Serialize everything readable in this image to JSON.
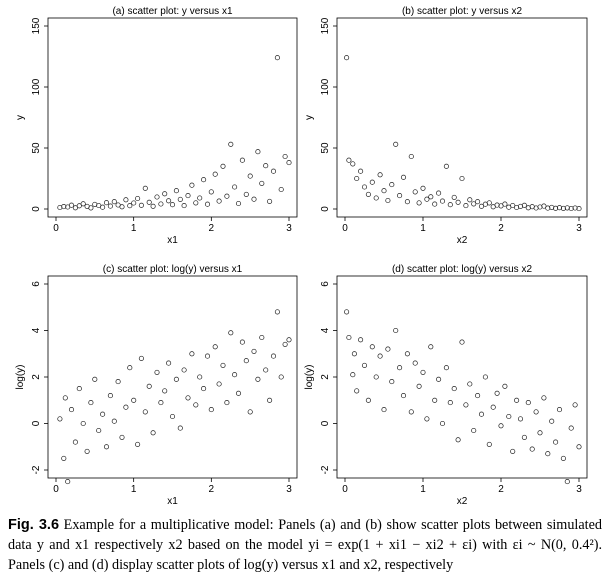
{
  "chart_data": [
    {
      "type": "scatter",
      "title": "(a) scatter plot: y versus x1",
      "xlabel": "x1",
      "ylabel": "y",
      "xlim": [
        0,
        3
      ],
      "ylim": [
        0,
        150
      ],
      "xticks": [
        0,
        1,
        2,
        3
      ],
      "yticks": [
        0,
        50,
        100,
        150
      ],
      "grid": false,
      "marker": "hollow circle",
      "points": [
        [
          0.05,
          1.2
        ],
        [
          0.1,
          2.0
        ],
        [
          0.15,
          1.6
        ],
        [
          0.2,
          3.1
        ],
        [
          0.25,
          1.0
        ],
        [
          0.3,
          2.6
        ],
        [
          0.35,
          4.3
        ],
        [
          0.4,
          2.1
        ],
        [
          0.45,
          0.9
        ],
        [
          0.5,
          3.8
        ],
        [
          0.55,
          2.9
        ],
        [
          0.6,
          1.5
        ],
        [
          0.65,
          5.2
        ],
        [
          0.7,
          2.4
        ],
        [
          0.75,
          6.0
        ],
        [
          0.8,
          3.3
        ],
        [
          0.85,
          1.8
        ],
        [
          0.9,
          7.5
        ],
        [
          0.95,
          2.7
        ],
        [
          1.0,
          4.9
        ],
        [
          1.05,
          8.6
        ],
        [
          1.1,
          3.0
        ],
        [
          1.15,
          17.0
        ],
        [
          1.2,
          5.5
        ],
        [
          1.25,
          2.2
        ],
        [
          1.3,
          9.8
        ],
        [
          1.35,
          4.1
        ],
        [
          1.4,
          12.5
        ],
        [
          1.45,
          6.7
        ],
        [
          1.5,
          3.5
        ],
        [
          1.55,
          15.0
        ],
        [
          1.6,
          7.9
        ],
        [
          1.65,
          2.8
        ],
        [
          1.7,
          11.0
        ],
        [
          1.75,
          19.5
        ],
        [
          1.8,
          5.0
        ],
        [
          1.85,
          9.0
        ],
        [
          1.9,
          24.0
        ],
        [
          1.95,
          3.9
        ],
        [
          2.0,
          14.0
        ],
        [
          2.05,
          28.5
        ],
        [
          2.1,
          6.5
        ],
        [
          2.15,
          35.0
        ],
        [
          2.2,
          10.5
        ],
        [
          2.25,
          53.0
        ],
        [
          2.3,
          18.0
        ],
        [
          2.35,
          4.5
        ],
        [
          2.4,
          40.0
        ],
        [
          2.45,
          12.0
        ],
        [
          2.5,
          27.0
        ],
        [
          2.55,
          8.0
        ],
        [
          2.6,
          47.0
        ],
        [
          2.65,
          21.0
        ],
        [
          2.7,
          35.5
        ],
        [
          2.75,
          6.2
        ],
        [
          2.8,
          31.0
        ],
        [
          2.85,
          124.0
        ],
        [
          2.9,
          16.0
        ],
        [
          2.95,
          43.0
        ],
        [
          3.0,
          38.0
        ]
      ]
    },
    {
      "type": "scatter",
      "title": "(b) scatter plot: y versus x2",
      "xlabel": "x2",
      "ylabel": "y",
      "xlim": [
        0,
        3
      ],
      "ylim": [
        0,
        150
      ],
      "xticks": [
        0,
        1,
        2,
        3
      ],
      "yticks": [
        0,
        50,
        100,
        150
      ],
      "grid": false,
      "marker": "hollow circle",
      "points": [
        [
          0.02,
          124.0
        ],
        [
          0.05,
          40.0
        ],
        [
          0.1,
          37.0
        ],
        [
          0.15,
          25.0
        ],
        [
          0.2,
          31.0
        ],
        [
          0.25,
          18.0
        ],
        [
          0.3,
          12.0
        ],
        [
          0.35,
          22.0
        ],
        [
          0.4,
          9.0
        ],
        [
          0.45,
          28.0
        ],
        [
          0.5,
          15.0
        ],
        [
          0.55,
          7.0
        ],
        [
          0.6,
          20.0
        ],
        [
          0.65,
          53.0
        ],
        [
          0.7,
          11.0
        ],
        [
          0.75,
          26.0
        ],
        [
          0.8,
          6.0
        ],
        [
          0.85,
          43.0
        ],
        [
          0.9,
          14.0
        ],
        [
          0.95,
          5.0
        ],
        [
          1.0,
          17.0
        ],
        [
          1.05,
          8.0
        ],
        [
          1.1,
          10.0
        ],
        [
          1.15,
          4.0
        ],
        [
          1.2,
          13.0
        ],
        [
          1.25,
          6.5
        ],
        [
          1.3,
          35.0
        ],
        [
          1.35,
          3.5
        ],
        [
          1.4,
          9.5
        ],
        [
          1.45,
          5.5
        ],
        [
          1.5,
          25.0
        ],
        [
          1.55,
          2.8
        ],
        [
          1.6,
          7.5
        ],
        [
          1.65,
          4.2
        ],
        [
          1.7,
          6.0
        ],
        [
          1.75,
          2.2
        ],
        [
          1.8,
          3.9
        ],
        [
          1.85,
          5.0
        ],
        [
          1.9,
          1.8
        ],
        [
          1.95,
          3.2
        ],
        [
          2.0,
          2.5
        ],
        [
          2.05,
          4.0
        ],
        [
          2.1,
          1.5
        ],
        [
          2.15,
          2.9
        ],
        [
          2.2,
          1.2
        ],
        [
          2.25,
          2.1
        ],
        [
          2.3,
          3.0
        ],
        [
          2.35,
          1.0
        ],
        [
          2.4,
          1.9
        ],
        [
          2.45,
          0.8
        ],
        [
          2.5,
          1.6
        ],
        [
          2.55,
          2.4
        ],
        [
          2.6,
          0.7
        ],
        [
          2.65,
          1.3
        ],
        [
          2.7,
          0.6
        ],
        [
          2.75,
          1.1
        ],
        [
          2.8,
          0.5
        ],
        [
          2.85,
          0.9
        ],
        [
          2.9,
          0.4
        ],
        [
          2.95,
          0.8
        ],
        [
          3.0,
          0.3
        ]
      ]
    },
    {
      "type": "scatter",
      "title": "(c) scatter plot: log(y) versus x1",
      "xlabel": "x1",
      "ylabel": "log(y)",
      "xlim": [
        0,
        3
      ],
      "ylim": [
        -2,
        6
      ],
      "xticks": [
        0,
        1,
        2,
        3
      ],
      "yticks": [
        -2,
        0,
        2,
        4,
        6
      ],
      "grid": false,
      "marker": "hollow circle",
      "points": [
        [
          0.05,
          0.2
        ],
        [
          0.1,
          -1.5
        ],
        [
          0.12,
          1.1
        ],
        [
          0.15,
          -2.5
        ],
        [
          0.2,
          0.6
        ],
        [
          0.25,
          -0.8
        ],
        [
          0.3,
          1.5
        ],
        [
          0.35,
          0.0
        ],
        [
          0.4,
          -1.2
        ],
        [
          0.45,
          0.9
        ],
        [
          0.5,
          1.9
        ],
        [
          0.55,
          -0.3
        ],
        [
          0.6,
          0.4
        ],
        [
          0.65,
          -1.0
        ],
        [
          0.7,
          1.2
        ],
        [
          0.75,
          0.1
        ],
        [
          0.8,
          1.8
        ],
        [
          0.85,
          -0.6
        ],
        [
          0.9,
          0.7
        ],
        [
          0.95,
          2.4
        ],
        [
          1.0,
          1.0
        ],
        [
          1.05,
          -0.9
        ],
        [
          1.1,
          2.8
        ],
        [
          1.15,
          0.5
        ],
        [
          1.2,
          1.6
        ],
        [
          1.25,
          -0.4
        ],
        [
          1.3,
          2.2
        ],
        [
          1.35,
          0.9
        ],
        [
          1.4,
          1.4
        ],
        [
          1.45,
          2.6
        ],
        [
          1.5,
          0.3
        ],
        [
          1.55,
          1.9
        ],
        [
          1.6,
          -0.2
        ],
        [
          1.65,
          2.3
        ],
        [
          1.7,
          1.1
        ],
        [
          1.75,
          3.0
        ],
        [
          1.8,
          0.8
        ],
        [
          1.85,
          2.0
        ],
        [
          1.9,
          1.5
        ],
        [
          1.95,
          2.9
        ],
        [
          2.0,
          0.6
        ],
        [
          2.05,
          3.3
        ],
        [
          2.1,
          1.7
        ],
        [
          2.15,
          2.5
        ],
        [
          2.2,
          0.9
        ],
        [
          2.25,
          3.9
        ],
        [
          2.3,
          2.1
        ],
        [
          2.35,
          1.3
        ],
        [
          2.4,
          3.5
        ],
        [
          2.45,
          2.7
        ],
        [
          2.5,
          0.5
        ],
        [
          2.55,
          3.1
        ],
        [
          2.6,
          1.9
        ],
        [
          2.65,
          3.7
        ],
        [
          2.7,
          2.3
        ],
        [
          2.75,
          1.0
        ],
        [
          2.8,
          2.9
        ],
        [
          2.85,
          4.8
        ],
        [
          2.9,
          2.0
        ],
        [
          2.95,
          3.4
        ],
        [
          3.0,
          3.6
        ]
      ]
    },
    {
      "type": "scatter",
      "title": "(d) scatter plot: log(y) versus x2",
      "xlabel": "x2",
      "ylabel": "log(y)",
      "xlim": [
        0,
        3
      ],
      "ylim": [
        -2,
        6
      ],
      "xticks": [
        0,
        1,
        2,
        3
      ],
      "yticks": [
        -2,
        0,
        2,
        4,
        6
      ],
      "grid": false,
      "marker": "hollow circle",
      "points": [
        [
          0.02,
          4.8
        ],
        [
          0.05,
          3.7
        ],
        [
          0.1,
          2.1
        ],
        [
          0.12,
          3.0
        ],
        [
          0.15,
          1.4
        ],
        [
          0.2,
          3.6
        ],
        [
          0.25,
          2.5
        ],
        [
          0.3,
          1.0
        ],
        [
          0.35,
          3.3
        ],
        [
          0.4,
          2.0
        ],
        [
          0.45,
          2.9
        ],
        [
          0.5,
          0.6
        ],
        [
          0.55,
          3.2
        ],
        [
          0.6,
          1.8
        ],
        [
          0.65,
          4.0
        ],
        [
          0.7,
          2.4
        ],
        [
          0.75,
          1.2
        ],
        [
          0.8,
          3.0
        ],
        [
          0.85,
          0.5
        ],
        [
          0.9,
          2.6
        ],
        [
          0.95,
          1.6
        ],
        [
          1.0,
          2.2
        ],
        [
          1.05,
          0.2
        ],
        [
          1.1,
          3.3
        ],
        [
          1.15,
          1.0
        ],
        [
          1.2,
          1.9
        ],
        [
          1.25,
          0.0
        ],
        [
          1.3,
          2.4
        ],
        [
          1.35,
          0.9
        ],
        [
          1.4,
          1.5
        ],
        [
          1.45,
          -0.7
        ],
        [
          1.5,
          3.5
        ],
        [
          1.55,
          0.8
        ],
        [
          1.6,
          1.7
        ],
        [
          1.65,
          -0.3
        ],
        [
          1.7,
          1.2
        ],
        [
          1.75,
          0.4
        ],
        [
          1.8,
          2.0
        ],
        [
          1.85,
          -0.9
        ],
        [
          1.9,
          0.7
        ],
        [
          1.95,
          1.3
        ],
        [
          2.0,
          -0.1
        ],
        [
          2.05,
          1.6
        ],
        [
          2.1,
          0.3
        ],
        [
          2.15,
          -1.2
        ],
        [
          2.2,
          1.0
        ],
        [
          2.25,
          0.2
        ],
        [
          2.3,
          -0.6
        ],
        [
          2.35,
          0.9
        ],
        [
          2.4,
          -1.1
        ],
        [
          2.45,
          0.5
        ],
        [
          2.5,
          -0.4
        ],
        [
          2.55,
          1.1
        ],
        [
          2.6,
          -1.3
        ],
        [
          2.65,
          0.1
        ],
        [
          2.7,
          -0.8
        ],
        [
          2.75,
          0.6
        ],
        [
          2.8,
          -1.5
        ],
        [
          2.85,
          -2.5
        ],
        [
          2.9,
          -0.2
        ],
        [
          2.95,
          0.8
        ],
        [
          3.0,
          -1.0
        ]
      ]
    }
  ],
  "caption": {
    "label": "Fig. 3.6",
    "body": "Example for a multiplicative model: Panels (a) and (b) show scatter plots between simulated data y and x1 respectively x2 based on the model yi = exp(1 + xi1 − xi2 + εi) with εi ~ N(0, 0.4²). Panels (c) and (d) display scatter plots of log(y) versus x1 and x2, respectively"
  }
}
